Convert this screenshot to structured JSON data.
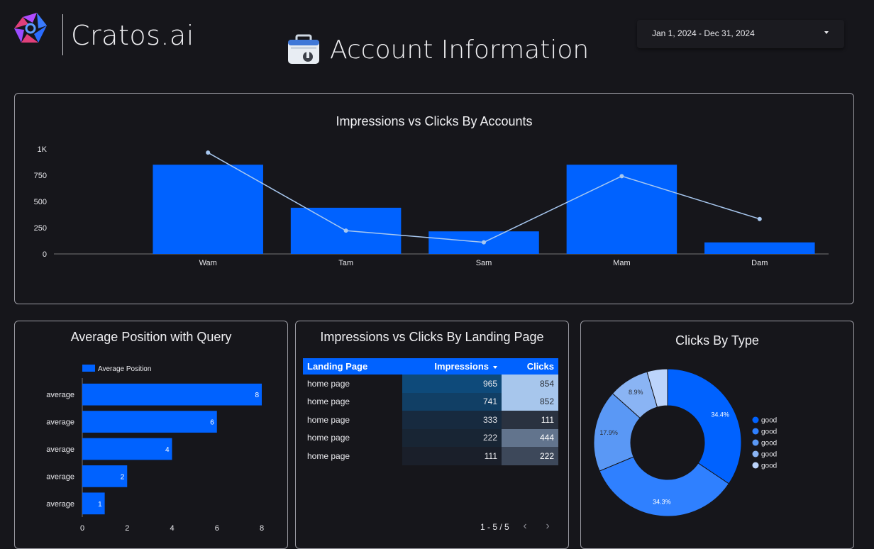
{
  "header": {
    "brand": "Cratos.ai",
    "title": "Account Information",
    "date_range": "Jan 1, 2024 - Dec 31, 2024"
  },
  "accent_color": "#0062ff",
  "line_color": "#a8c8f0",
  "chart_data": [
    {
      "type": "bar",
      "title": "Impressions vs Clicks By Accounts",
      "categories": [
        "Wam",
        "Tam",
        "Sam",
        "Mam",
        "Dam"
      ],
      "series": [
        {
          "values": [
            850,
            440,
            215,
            850,
            110
          ]
        },
        {
          "values": [
            965,
            222,
            111,
            741,
            333
          ]
        }
      ],
      "yticks": [
        "0",
        "250",
        "500",
        "750",
        "1K"
      ],
      "ylim": [
        0,
        1000
      ]
    },
    {
      "type": "bar",
      "orientation": "horizontal",
      "title": "Average Position with Query",
      "categories": [
        "average",
        "average",
        "average",
        "average",
        "average"
      ],
      "series": [
        {
          "name": "Average Position",
          "values": [
            8,
            6,
            4,
            2,
            1
          ]
        }
      ],
      "xticks": [
        "0",
        "2",
        "4",
        "6",
        "8"
      ],
      "xlim": [
        0,
        8
      ],
      "legend": "top-left"
    },
    {
      "type": "table",
      "title": "Impressions vs Clicks By Landing Page",
      "columns": [
        "Landing Page",
        "Impressions",
        "Clicks"
      ],
      "rows": [
        [
          "home page",
          "965",
          "854"
        ],
        [
          "home page",
          "741",
          "852"
        ],
        [
          "home page",
          "333",
          "111"
        ],
        [
          "home page",
          "222",
          "444"
        ],
        [
          "home page",
          "111",
          "222"
        ]
      ],
      "pagination": "1 - 5 / 5"
    },
    {
      "type": "pie",
      "title": "Clicks By Type",
      "labels": [
        "good",
        "good",
        "good",
        "good",
        "good"
      ],
      "values": [
        34.4,
        34.3,
        17.9,
        8.9,
        4.5
      ],
      "value_labels": [
        "34.4%",
        "34.3%",
        "17.9%",
        "8.9%",
        ""
      ],
      "colors": [
        "#0062ff",
        "#2f80ff",
        "#5a98f5",
        "#8ab4f4",
        "#bcd4fb"
      ],
      "legend": "right"
    }
  ]
}
